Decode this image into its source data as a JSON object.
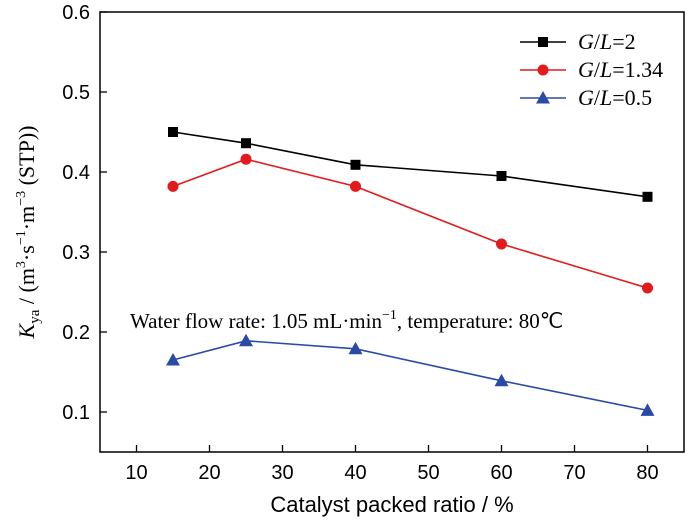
{
  "chart_data": {
    "type": "line",
    "xlabel": "Catalyst packed ratio  / %",
    "ylabel": {
      "symbol": "K",
      "subscript": "ya",
      "units_prefix": " / (m",
      "sup1": "3",
      "mid1": "·s",
      "sup2": "−1",
      "mid2": "·m",
      "sup3": "−3",
      "units_suffix": " (STP))"
    },
    "xlim": [
      5,
      85
    ],
    "ylim": [
      0.05,
      0.6
    ],
    "xticks": [
      10,
      20,
      30,
      40,
      50,
      60,
      70,
      80
    ],
    "yticks": [
      0.1,
      0.2,
      0.3,
      0.4,
      0.5,
      0.6
    ],
    "x": [
      15,
      25,
      40,
      60,
      80
    ],
    "series": [
      {
        "name_pre": "G",
        "name_mid": "/",
        "name_it": "L",
        "name_post": "=2",
        "color": "#000000",
        "marker": "square",
        "values": [
          0.45,
          0.436,
          0.409,
          0.395,
          0.369
        ]
      },
      {
        "name_pre": "G",
        "name_mid": "/",
        "name_it": "L",
        "name_post": "=1.34",
        "color": "#e31a1c",
        "marker": "circle",
        "values": [
          0.382,
          0.416,
          0.382,
          0.31,
          0.255
        ]
      },
      {
        "name_pre": "G",
        "name_mid": "/",
        "name_it": "L",
        "name_post": "=0.5",
        "color": "#2b4aa8",
        "marker": "triangle",
        "values": [
          0.165,
          0.189,
          0.179,
          0.139,
          0.102
        ]
      }
    ],
    "annotation": {
      "pre": "Water flow rate: 1.05 mL·min",
      "sup": "−1",
      "post": ", temperature: 80℃"
    },
    "legend_position": "top-right",
    "grid": false
  }
}
